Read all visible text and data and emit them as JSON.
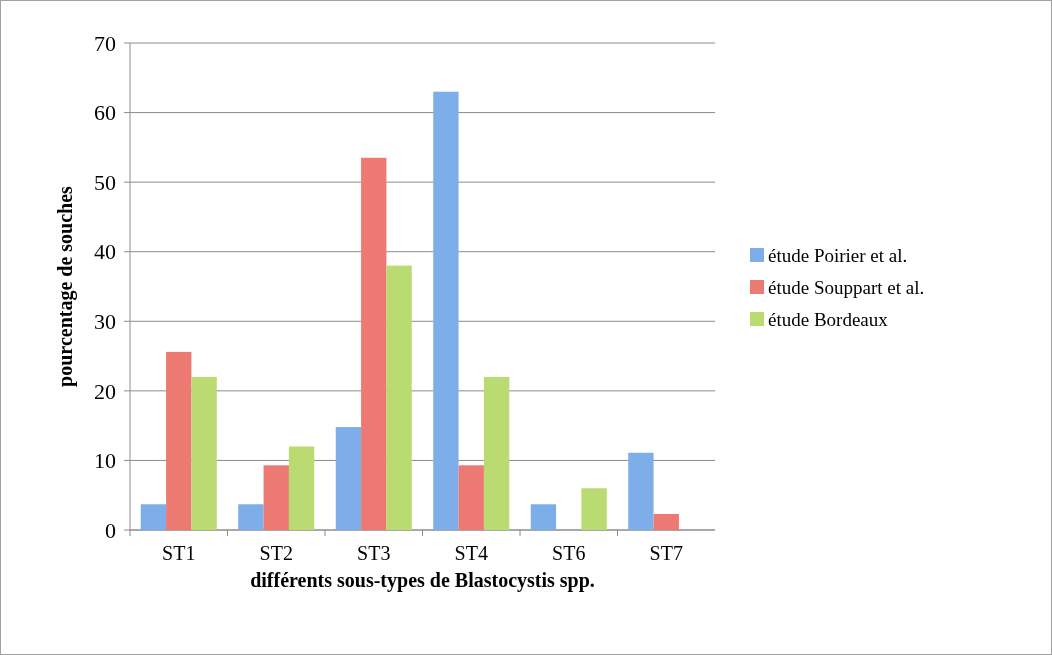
{
  "chart_data": {
    "type": "bar",
    "xlabel": "différents sous-types de Blastocystis spp.",
    "ylabel": "pourcentage de souches",
    "categories": [
      "ST1",
      "ST2",
      "ST3",
      "ST4",
      "ST6",
      "ST7"
    ],
    "series": [
      {
        "name": "étude Poirier et al.",
        "color": "#7eaeea",
        "values": [
          3.7,
          3.7,
          14.8,
          63,
          3.7,
          11.1
        ]
      },
      {
        "name": "étude Souppart et al.",
        "color": "#ec7a72",
        "values": [
          25.6,
          9.3,
          53.5,
          9.3,
          0,
          2.3
        ]
      },
      {
        "name": "étude Bordeaux",
        "color": "#bada72",
        "values": [
          22,
          12,
          38,
          22,
          6,
          0
        ]
      }
    ],
    "ylim": [
      0,
      70
    ],
    "yticks": [
      0,
      10,
      20,
      30,
      40,
      50,
      60,
      70
    ],
    "grid": "y",
    "legend": "right"
  }
}
